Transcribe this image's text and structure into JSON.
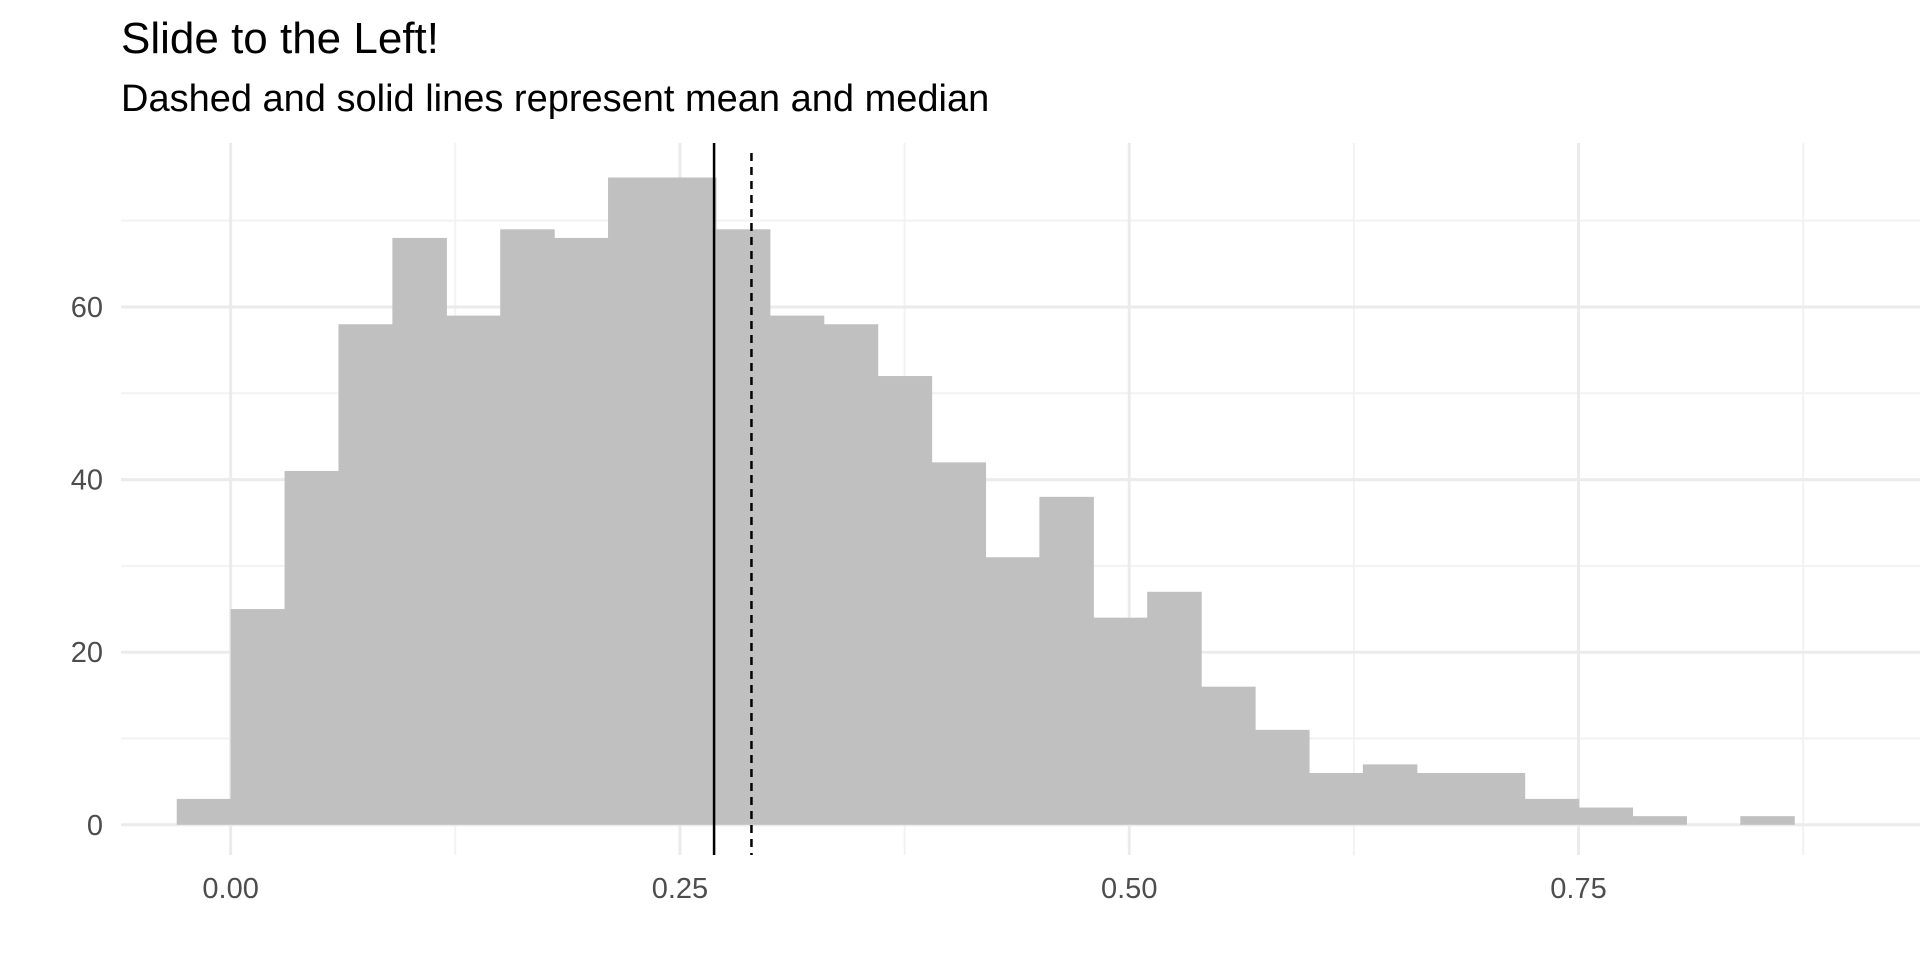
{
  "chart_data": {
    "type": "bar",
    "title": "Slide to the Left!",
    "subtitle": "Dashed and solid lines represent mean and median",
    "xlabel": "",
    "ylabel": "",
    "bin_width": 0.0303,
    "bins": [
      {
        "x0": -0.03,
        "x1": 0.0,
        "count": 3
      },
      {
        "x0": 0.0,
        "x1": 0.03,
        "count": 25
      },
      {
        "x0": 0.03,
        "x1": 0.06,
        "count": 41
      },
      {
        "x0": 0.06,
        "x1": 0.09,
        "count": 58
      },
      {
        "x0": 0.09,
        "x1": 0.12,
        "count": 68
      },
      {
        "x0": 0.12,
        "x1": 0.15,
        "count": 59
      },
      {
        "x0": 0.15,
        "x1": 0.18,
        "count": 69
      },
      {
        "x0": 0.18,
        "x1": 0.21,
        "count": 68
      },
      {
        "x0": 0.21,
        "x1": 0.24,
        "count": 75
      },
      {
        "x0": 0.24,
        "x1": 0.27,
        "count": 75
      },
      {
        "x0": 0.27,
        "x1": 0.3,
        "count": 69
      },
      {
        "x0": 0.3,
        "x1": 0.33,
        "count": 59
      },
      {
        "x0": 0.33,
        "x1": 0.36,
        "count": 58
      },
      {
        "x0": 0.36,
        "x1": 0.39,
        "count": 52
      },
      {
        "x0": 0.39,
        "x1": 0.42,
        "count": 42
      },
      {
        "x0": 0.42,
        "x1": 0.45,
        "count": 31
      },
      {
        "x0": 0.45,
        "x1": 0.48,
        "count": 38
      },
      {
        "x0": 0.48,
        "x1": 0.51,
        "count": 24
      },
      {
        "x0": 0.51,
        "x1": 0.54,
        "count": 27
      },
      {
        "x0": 0.54,
        "x1": 0.57,
        "count": 16
      },
      {
        "x0": 0.57,
        "x1": 0.6,
        "count": 11
      },
      {
        "x0": 0.6,
        "x1": 0.63,
        "count": 6
      },
      {
        "x0": 0.63,
        "x1": 0.66,
        "count": 7
      },
      {
        "x0": 0.66,
        "x1": 0.69,
        "count": 6
      },
      {
        "x0": 0.69,
        "x1": 0.72,
        "count": 6
      },
      {
        "x0": 0.72,
        "x1": 0.75,
        "count": 3
      },
      {
        "x0": 0.75,
        "x1": 0.78,
        "count": 2
      },
      {
        "x0": 0.78,
        "x1": 0.81,
        "count": 1
      },
      {
        "x0": 0.81,
        "x1": 0.84,
        "count": 0
      },
      {
        "x0": 0.84,
        "x1": 0.87,
        "count": 1
      }
    ],
    "median": 0.269,
    "mean": 0.2898,
    "xlim": [
      -0.061,
      0.94
    ],
    "ylim": [
      -3.5,
      79
    ],
    "x_ticks": [
      {
        "value": 0.0,
        "label": "0.00"
      },
      {
        "value": 0.25,
        "label": "0.25"
      },
      {
        "value": 0.5,
        "label": "0.50"
      },
      {
        "value": 0.75,
        "label": "0.75"
      }
    ],
    "x_minor_ticks": [
      0.125,
      0.375,
      0.625,
      0.875
    ],
    "y_ticks": [
      {
        "value": 0,
        "label": "0"
      },
      {
        "value": 20,
        "label": "20"
      },
      {
        "value": 40,
        "label": "40"
      },
      {
        "value": 60,
        "label": "60"
      }
    ],
    "y_minor_ticks": [
      10,
      30,
      50,
      70
    ],
    "grid": true,
    "colors": {
      "bar": "#c0c0c0",
      "grid_major": "#ebebeb",
      "grid_minor": "#f2f2f2",
      "line": "#000000"
    }
  }
}
